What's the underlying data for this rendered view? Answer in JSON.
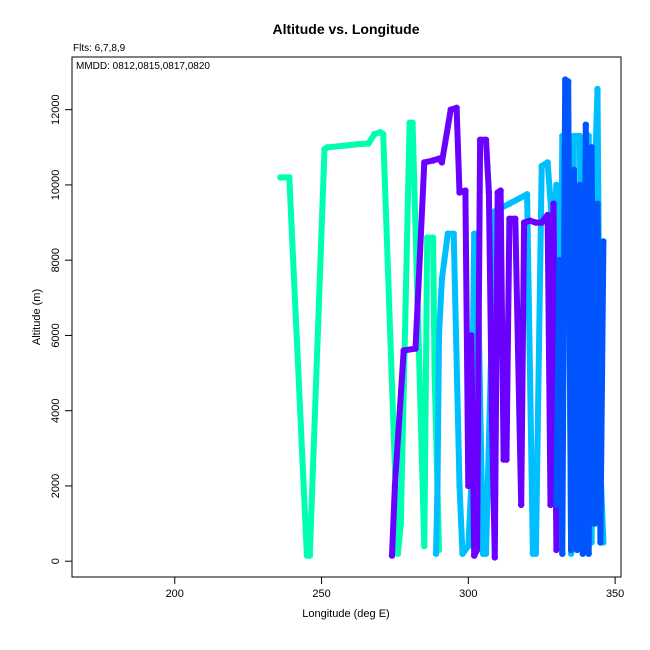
{
  "chart_data": {
    "type": "line",
    "title": "Altitude vs. Longitude",
    "xlabel": "Longitude (deg E)",
    "ylabel": "Altitude (m)",
    "flights_note": "Flts: 6,7,8,9",
    "dates_note": "MMDD: 0812,0815,0817,0820",
    "xlim": [
      165,
      352
    ],
    "ylim": [
      -420,
      13400
    ],
    "x_ticks": [
      200,
      250,
      300,
      350
    ],
    "y_ticks": [
      0,
      2000,
      4000,
      6000,
      8000,
      10000,
      12000
    ],
    "grid": false,
    "series": [
      {
        "color": "#00FFB0",
        "points": [
          [
            236,
            10200
          ],
          [
            239,
            10200
          ],
          [
            245,
            150
          ],
          [
            246,
            150
          ],
          [
            251,
            10950
          ],
          [
            252,
            11000
          ],
          [
            259,
            11050
          ],
          [
            262,
            11080
          ],
          [
            266,
            11100
          ],
          [
            268,
            11350
          ],
          [
            270,
            11400
          ],
          [
            271,
            11350
          ],
          [
            276,
            200
          ],
          [
            277,
            1000
          ],
          [
            280,
            11650
          ],
          [
            281,
            11650
          ],
          [
            285,
            400
          ],
          [
            286,
            8600
          ],
          [
            288,
            8600
          ],
          [
            288.5,
            5000
          ],
          [
            290,
            300
          ]
        ]
      },
      {
        "color": "#00BFFF",
        "points": [
          [
            289,
            200
          ],
          [
            289.5,
            2000
          ],
          [
            290,
            6000
          ],
          [
            291,
            7500
          ],
          [
            293,
            8700
          ],
          [
            295,
            8700
          ],
          [
            297,
            2000
          ],
          [
            298,
            200
          ],
          [
            300,
            400
          ],
          [
            301,
            2000
          ],
          [
            302,
            8700
          ],
          [
            303,
            8700
          ],
          [
            305,
            200
          ],
          [
            306,
            200
          ],
          [
            309,
            9300
          ],
          [
            314,
            9500
          ],
          [
            320,
            9750
          ],
          [
            322,
            200
          ],
          [
            323,
            200
          ],
          [
            325,
            10500
          ],
          [
            327,
            10600
          ],
          [
            329,
            8500
          ],
          [
            330,
            10000
          ],
          [
            331,
            1000
          ],
          [
            332,
            11300
          ],
          [
            334,
            11300
          ],
          [
            335,
            200
          ],
          [
            336,
            11300
          ],
          [
            338,
            11300
          ],
          [
            339,
            300
          ],
          [
            340,
            11250
          ],
          [
            341,
            11300
          ],
          [
            342,
            500
          ],
          [
            343,
            10000
          ],
          [
            344,
            12550
          ],
          [
            345,
            2500
          ],
          [
            346,
            500
          ]
        ]
      },
      {
        "color": "#6A00FF",
        "points": [
          [
            274,
            150
          ],
          [
            275,
            2000
          ],
          [
            278,
            5600
          ],
          [
            282,
            5650
          ],
          [
            285,
            10600
          ],
          [
            288,
            10650
          ],
          [
            290,
            10700
          ],
          [
            291,
            10600
          ],
          [
            294,
            12000
          ],
          [
            296,
            12050
          ],
          [
            297,
            9800
          ],
          [
            299,
            9850
          ],
          [
            300,
            2000
          ],
          [
            301,
            6000
          ],
          [
            302,
            150
          ],
          [
            303,
            300
          ],
          [
            304,
            11200
          ],
          [
            306,
            11200
          ],
          [
            307,
            9800
          ],
          [
            308,
            4000
          ],
          [
            309,
            100
          ],
          [
            310,
            9800
          ],
          [
            311,
            9850
          ],
          [
            312,
            2700
          ],
          [
            313,
            2700
          ],
          [
            314,
            9100
          ],
          [
            316,
            9100
          ],
          [
            318,
            1500
          ],
          [
            319,
            9000
          ],
          [
            321,
            9050
          ],
          [
            323,
            9000
          ],
          [
            325,
            9000
          ],
          [
            327,
            9200
          ],
          [
            328,
            1500
          ],
          [
            329,
            9500
          ],
          [
            330,
            300
          ]
        ]
      },
      {
        "color": "#0055FF",
        "points": [
          [
            330,
            1500
          ],
          [
            331,
            8000
          ],
          [
            332,
            200
          ],
          [
            333,
            12800
          ],
          [
            334,
            12750
          ],
          [
            335,
            300
          ],
          [
            336,
            10400
          ],
          [
            337,
            300
          ],
          [
            338,
            10000
          ],
          [
            339,
            200
          ],
          [
            340,
            11600
          ],
          [
            341,
            200
          ],
          [
            342,
            11000
          ],
          [
            343,
            1000
          ],
          [
            344,
            9500
          ],
          [
            345,
            500
          ],
          [
            346,
            8500
          ]
        ]
      }
    ]
  }
}
